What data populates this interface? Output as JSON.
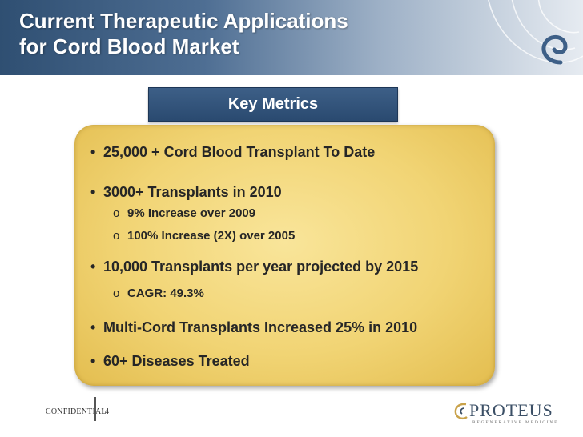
{
  "slide": {
    "title_line1": "Current Therapeutic Applications",
    "title_line2": "for Cord Blood Market",
    "banner": "Key Metrics"
  },
  "metrics": {
    "bullets": [
      {
        "text": "25,000 + Cord Blood Transplant To Date"
      },
      {
        "text": "3000+  Transplants in 2010",
        "subs": [
          "9% Increase over 2009",
          "100% Increase (2X) over 2005"
        ]
      },
      {
        "text": "10,000 Transplants  per  year projected by 2015",
        "subs": [
          "CAGR: 49.3%"
        ]
      },
      {
        "text": "Multi-Cord Transplants Increased 25% in 2010"
      },
      {
        "text": "60+ Diseases Treated"
      }
    ],
    "bullet_glyph": "•",
    "sub_glyph": "o"
  },
  "footer": {
    "confidential": "CONFIDENTIAL",
    "page_number": "14",
    "logo_name": "PROTEUS",
    "logo_tagline": "REGENERATIVE MEDICINE"
  },
  "colors": {
    "header_dark": "#2f4f72",
    "banner": "#2a4a70",
    "panel_gold": "#f1d474"
  }
}
